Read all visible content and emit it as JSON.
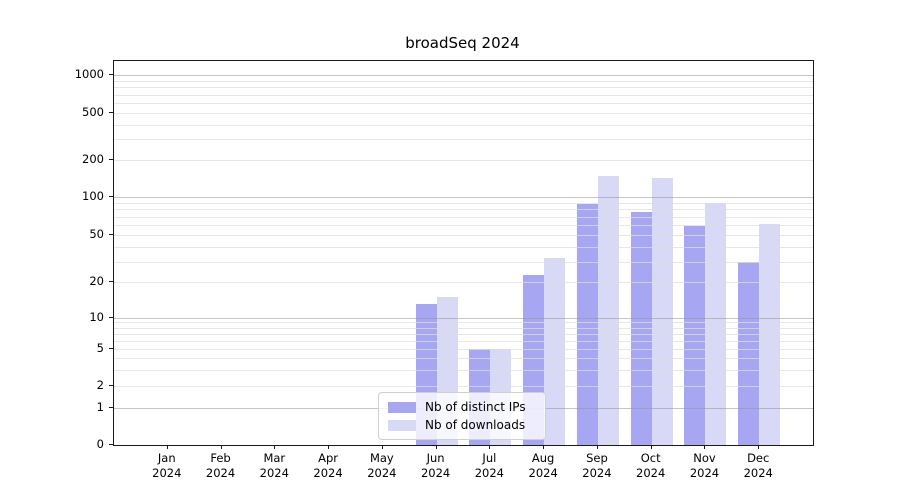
{
  "chart_data": {
    "type": "bar",
    "title": "broadSeq 2024",
    "categories": [
      "Jan",
      "Feb",
      "Mar",
      "Apr",
      "May",
      "Jun",
      "Jul",
      "Aug",
      "Sep",
      "Oct",
      "Nov",
      "Dec"
    ],
    "year_label": "2024",
    "series": [
      {
        "name": "Nb of distinct IPs",
        "color": "#a6a6f2",
        "values": [
          0,
          0,
          0,
          0,
          0,
          13,
          5,
          23,
          88,
          77,
          59,
          30
        ]
      },
      {
        "name": "Nb of downloads",
        "color": "#d8d8f7",
        "values": [
          0,
          0,
          0,
          0,
          0,
          15,
          5,
          32,
          150,
          143,
          90,
          61
        ]
      }
    ],
    "xlabel": "",
    "ylabel": "",
    "y_scale": "asinh",
    "y_tick_labels": [
      0,
      1,
      2,
      5,
      10,
      20,
      50,
      100,
      200,
      500,
      1000
    ],
    "y_major_gridlines": [
      1,
      10,
      100,
      1000
    ],
    "y_minor_gridlines": [
      2,
      3,
      4,
      5,
      6,
      7,
      8,
      9,
      20,
      30,
      40,
      50,
      60,
      70,
      80,
      90,
      200,
      300,
      400,
      500,
      600,
      700,
      800,
      900
    ],
    "y_scale_anchors": [
      {
        "value": 0,
        "frac": 0.0
      },
      {
        "value": 1,
        "frac": 0.0956
      },
      {
        "value": 2,
        "frac": 0.1536
      },
      {
        "value": 5,
        "frac": 0.2492
      },
      {
        "value": 10,
        "frac": 0.332
      },
      {
        "value": 20,
        "frac": 0.4232
      },
      {
        "value": 50,
        "frac": 0.5456
      },
      {
        "value": 100,
        "frac": 0.6458
      },
      {
        "value": 200,
        "frac": 0.7409
      },
      {
        "value": 500,
        "frac": 0.8646
      },
      {
        "value": 1000,
        "frac": 0.9635
      }
    ],
    "legend": {
      "position": "lower-center"
    },
    "grid": true
  }
}
